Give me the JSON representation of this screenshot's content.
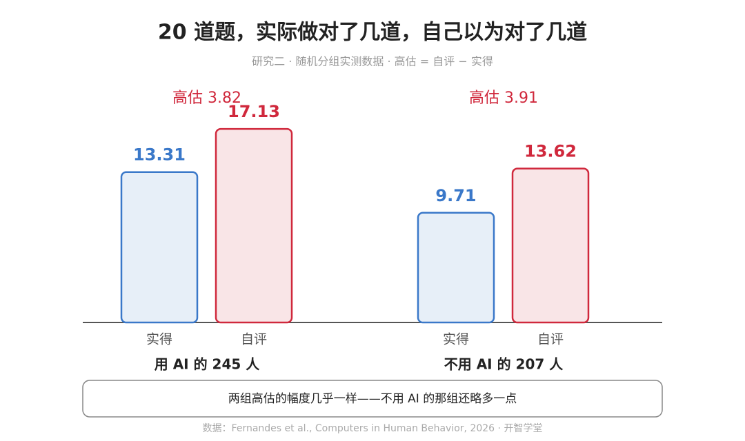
{
  "chart_data": {
    "type": "bar",
    "title": "20 道题，实际做对了几道，自己以为对了几道",
    "subtitle": "研究二 · 随机分组实测数据 · 高估 = 自评 − 实得",
    "categories": [
      "用 AI 的 245 人",
      "不用 AI 的 207 人"
    ],
    "series": [
      {
        "name": "实得",
        "color": "#3a78c9",
        "values": [
          13.31,
          9.71
        ]
      },
      {
        "name": "自评",
        "color": "#d0283c",
        "values": [
          17.13,
          13.62
        ]
      }
    ],
    "annotations": [
      "高估 3.82",
      "高估 3.91"
    ],
    "note": "两组高估的幅度几乎一样——不用 AI 的那组还略多一点",
    "source": "数据：Fernandes et al., Computers in Human Behavior, 2026 · 开智学堂"
  }
}
